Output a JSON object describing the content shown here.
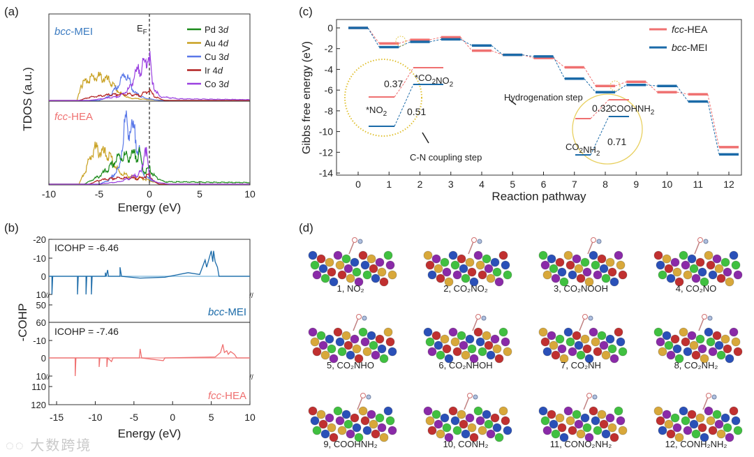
{
  "panel_labels": [
    "(a)",
    "(b)",
    "(c)",
    "(d)"
  ],
  "watermark": "大数跨境",
  "colors": {
    "Pd": "#1a8a1a",
    "Au": "#c8a020",
    "Cu": "#5a78e8",
    "Ir": "#b22020",
    "Co": "#9a40e0",
    "fcc": "#ef7070",
    "bcc": "#1a6aa8"
  },
  "chart_data": [
    {
      "type": "line",
      "id": "a",
      "title": "",
      "xlabel": "Energy (eV)",
      "ylabel": "TDOS (a.u.)",
      "xlim": [
        -10,
        10
      ],
      "xticks": [
        "-10",
        "-5",
        "0",
        "5",
        "10"
      ],
      "ef_label": "E",
      "ef_sub": "F",
      "legend": [
        {
          "key": "Pd",
          "label": "Pd 3d"
        },
        {
          "key": "Au",
          "label": "Au 4d"
        },
        {
          "key": "Cu",
          "label": "Cu 3d"
        },
        {
          "key": "Ir",
          "label": "Ir 4d"
        },
        {
          "key": "Co",
          "label": "Co 3d"
        }
      ],
      "panels": [
        {
          "name": "bcc-MEI",
          "series": {
            "Au": [
              [
                -10,
                0
              ],
              [
                -7.2,
                0
              ],
              [
                -6.8,
                0.2
              ],
              [
                -6,
                0.28
              ],
              [
                -5,
                0.3
              ],
              [
                -4,
                0.25
              ],
              [
                -3,
                0.1
              ],
              [
                -2,
                0.03
              ],
              [
                0,
                0.01
              ],
              [
                2,
                0
              ],
              [
                10,
                0
              ]
            ],
            "Cu": [
              [
                -10,
                0
              ],
              [
                -5,
                0
              ],
              [
                -4,
                0.05
              ],
              [
                -3,
                0.2
              ],
              [
                -2.5,
                0.35
              ],
              [
                -2,
                0.25
              ],
              [
                -1.5,
                0.1
              ],
              [
                -0.5,
                0.03
              ],
              [
                1,
                0
              ],
              [
                10,
                0
              ]
            ],
            "Ir": [
              [
                -10,
                0
              ],
              [
                -7,
                0
              ],
              [
                -6,
                0.04
              ],
              [
                -4,
                0.07
              ],
              [
                -2,
                0.08
              ],
              [
                -1,
                0.06
              ],
              [
                0,
                0.13
              ],
              [
                0.5,
                0.05
              ],
              [
                1.5,
                0
              ],
              [
                10,
                0
              ]
            ],
            "Co": [
              [
                -10,
                0
              ],
              [
                -6,
                0
              ],
              [
                -3,
                0.05
              ],
              [
                -2,
                0.15
              ],
              [
                -1.5,
                0.3
              ],
              [
                -1,
                0.4
              ],
              [
                -0.5,
                0.45
              ],
              [
                0,
                0.6
              ],
              [
                0.3,
                0.2
              ],
              [
                1,
                0.05
              ],
              [
                3,
                0.02
              ],
              [
                10,
                0.01
              ]
            ]
          }
        },
        {
          "name": "fcc-HEA",
          "series": {
            "Au": [
              [
                -10,
                0
              ],
              [
                -7,
                0
              ],
              [
                -6.3,
                0.2
              ],
              [
                -5.5,
                0.45
              ],
              [
                -5,
                0.42
              ],
              [
                -4,
                0.35
              ],
              [
                -3,
                0.15
              ],
              [
                -2,
                0.1
              ],
              [
                -1,
                0.08
              ],
              [
                0,
                0.05
              ],
              [
                1,
                0
              ],
              [
                10,
                0
              ]
            ],
            "Cu": [
              [
                -10,
                0
              ],
              [
                -5,
                0
              ],
              [
                -4,
                0.05
              ],
              [
                -3,
                0.2
              ],
              [
                -2.7,
                0.5
              ],
              [
                -2.4,
                0.8
              ],
              [
                -2,
                0.7
              ],
              [
                -1.5,
                0.65
              ],
              [
                -1,
                0.4
              ],
              [
                -0.5,
                0.1
              ],
              [
                1,
                0
              ],
              [
                10,
                0
              ]
            ],
            "Pd": [
              [
                -10,
                0
              ],
              [
                -6.5,
                0
              ],
              [
                -5,
                0.1
              ],
              [
                -4,
                0.2
              ],
              [
                -3,
                0.35
              ],
              [
                -2,
                0.35
              ],
              [
                -1,
                0.38
              ],
              [
                -0.5,
                0.15
              ],
              [
                0,
                0.2
              ],
              [
                0.5,
                0.1
              ],
              [
                1.5,
                0.03
              ],
              [
                10,
                0.02
              ]
            ],
            "Ir": [
              [
                -10,
                0
              ],
              [
                -6,
                0
              ],
              [
                -5,
                0.05
              ],
              [
                -3,
                0.08
              ],
              [
                -1,
                0.07
              ],
              [
                0,
                0.12
              ],
              [
                0.5,
                0.03
              ],
              [
                1,
                0
              ],
              [
                10,
                0
              ]
            ],
            "Co": [
              [
                -10,
                0
              ],
              [
                -5,
                0
              ],
              [
                -3,
                0.03
              ],
              [
                -1.5,
                0.1
              ],
              [
                -0.8,
                0.15
              ],
              [
                -0.4,
                0.5
              ],
              [
                -0.2,
                0.3
              ],
              [
                0,
                0.1
              ],
              [
                0.5,
                0.03
              ],
              [
                2,
                0
              ],
              [
                10,
                0
              ]
            ]
          }
        }
      ]
    },
    {
      "type": "line",
      "id": "b",
      "xlabel": "Energy (eV)",
      "ylabel": "-COHP",
      "xlim": [
        -16,
        10
      ],
      "xticks": [
        "-15",
        "-10",
        "-5",
        "0",
        "5",
        "10"
      ],
      "top": {
        "name": "bcc-MEI",
        "icohp": "ICOHP = -6.46",
        "yticks": [
          "-20",
          "-10",
          "0",
          "10",
          "50",
          "60"
        ],
        "points": [
          [
            -16,
            0
          ],
          [
            -15.6,
            0
          ],
          [
            -15.6,
            10
          ],
          [
            -15.5,
            0
          ],
          [
            -12.3,
            0
          ],
          [
            -12.3,
            10
          ],
          [
            -12.2,
            0
          ],
          [
            -11.2,
            0
          ],
          [
            -11.2,
            10
          ],
          [
            -11.1,
            0
          ],
          [
            -10.5,
            0
          ],
          [
            -10.5,
            10
          ],
          [
            -10.4,
            0
          ],
          [
            -8.7,
            0
          ],
          [
            -8.7,
            -2
          ],
          [
            -8.6,
            0
          ],
          [
            -8.4,
            -3.5
          ],
          [
            -8.3,
            0
          ],
          [
            -6.8,
            0
          ],
          [
            -6.8,
            -5
          ],
          [
            -6.6,
            0
          ],
          [
            -4.2,
            1
          ],
          [
            -1,
            0.5
          ],
          [
            2,
            -2
          ],
          [
            3.5,
            -1
          ],
          [
            4.2,
            -9
          ],
          [
            4.4,
            -5
          ],
          [
            5,
            -14
          ],
          [
            5.2,
            -8
          ],
          [
            5.3,
            -14
          ],
          [
            5.5,
            -8
          ],
          [
            5.8,
            -5
          ],
          [
            6,
            0
          ],
          [
            10,
            0
          ]
        ]
      },
      "bottom": {
        "name": "fcc-HEA",
        "icohp": "ICOHP = -7.46",
        "yticks": [
          "-10",
          "0",
          "10",
          "110",
          "120"
        ],
        "points": [
          [
            -16,
            0
          ],
          [
            -12.6,
            0
          ],
          [
            -12.6,
            10
          ],
          [
            -12.5,
            0
          ],
          [
            -9.5,
            0
          ],
          [
            -9.5,
            5
          ],
          [
            -9.4,
            0
          ],
          [
            -8.5,
            0
          ],
          [
            -8.5,
            5
          ],
          [
            -8.4,
            0
          ],
          [
            -7.9,
            2
          ],
          [
            -7.7,
            0
          ],
          [
            -4.3,
            0
          ],
          [
            -4.2,
            -5
          ],
          [
            -4.0,
            0
          ],
          [
            -1.2,
            1.5
          ],
          [
            -1,
            0
          ],
          [
            5.5,
            -0.5
          ],
          [
            6.2,
            -3
          ],
          [
            6.5,
            -7.5
          ],
          [
            6.7,
            -3
          ],
          [
            7,
            -4
          ],
          [
            7.2,
            -2
          ],
          [
            7.5,
            -3.5
          ],
          [
            8,
            -2
          ],
          [
            8.3,
            0
          ],
          [
            10,
            0
          ]
        ]
      }
    },
    {
      "type": "line",
      "id": "c",
      "xlabel": "Reaction pathway",
      "ylabel": "Gibbs free energy (eV)",
      "xlim": [
        -0.5,
        12.5
      ],
      "ylim": [
        -14,
        0
      ],
      "xticks": [
        "0",
        "1",
        "2",
        "3",
        "4",
        "5",
        "6",
        "7",
        "8",
        "9",
        "10",
        "11",
        "12"
      ],
      "yticks": [
        "0",
        "-2",
        "-4",
        "-6",
        "-8",
        "-10",
        "-12",
        "-14"
      ],
      "series": [
        {
          "name": "fcc-HEA",
          "key": "fcc",
          "values": [
            0,
            -1.5,
            -1.15,
            -0.9,
            -2.2,
            -2.6,
            -2.9,
            -3.8,
            -5.6,
            -5.2,
            -6.2,
            -6.4,
            -11.5
          ]
        },
        {
          "name": "bcc-MEI",
          "key": "bcc",
          "values": [
            0,
            -1.85,
            -1.35,
            -1.1,
            -1.7,
            -2.6,
            -2.75,
            -4.9,
            -6.2,
            -5.5,
            -5.6,
            -7.1,
            -12.2
          ]
        }
      ],
      "annotations": {
        "cn_fcc": "0.37",
        "cn_bcc": "0.51",
        "cn_from": "*NO",
        "cn_to": "*CO",
        "cn_step": "C-N coupling step",
        "h_fcc": "0.32",
        "h_bcc": "0.71",
        "h_from": "CO",
        "h_to": "COOHNH",
        "h_step": "Hydrogenation step",
        "sub2": "2"
      }
    }
  ],
  "structures": [
    "1, NO₂",
    "2, CO₂NO₂",
    "3, CO₂NOOH",
    "4, CO₂NO",
    "5, CO₂NHO",
    "6, CO₂NHOH",
    "7, CO₂NH",
    "8, CO₂NH₂",
    "9, COOHNH₂",
    "10, CONH₂",
    "11, CONO₂NH₂",
    "12, CONH₂NH₂"
  ]
}
